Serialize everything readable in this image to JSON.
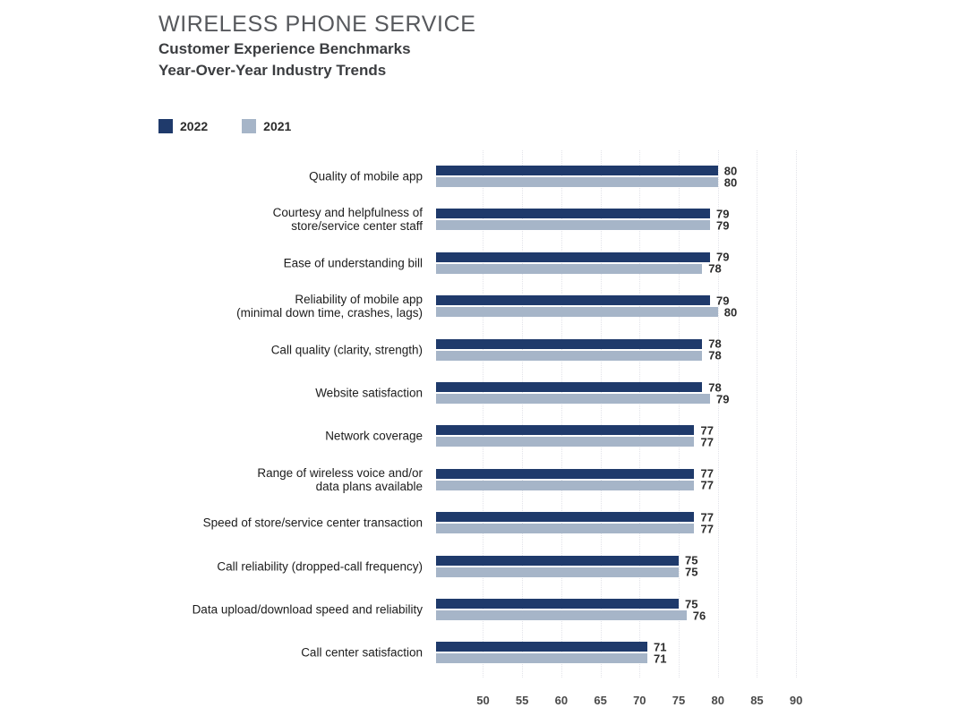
{
  "header": {
    "title": "WIRELESS PHONE SERVICE",
    "subtitle_line1": "Customer Experience Benchmarks",
    "subtitle_line2": "Year-Over-Year Industry Trends"
  },
  "legend": {
    "items": [
      {
        "label": "2022",
        "color": "#1f3a6b"
      },
      {
        "label": "2021",
        "color": "#a6b5c8"
      }
    ]
  },
  "chart_data": {
    "type": "bar",
    "orientation": "horizontal",
    "title": "WIRELESS PHONE SERVICE",
    "subtitle": "Customer Experience Benchmarks — Year-Over-Year Industry Trends",
    "categories": [
      [
        "Quality of mobile app"
      ],
      [
        "Courtesy and helpfulness of",
        "store/service center staff"
      ],
      [
        "Ease of understanding bill"
      ],
      [
        "Reliability of mobile app",
        "(minimal down time, crashes, lags)"
      ],
      [
        "Call quality (clarity, strength)"
      ],
      [
        "Website satisfaction"
      ],
      [
        "Network coverage"
      ],
      [
        "Range of wireless voice and/or",
        "data plans available"
      ],
      [
        "Speed of store/service center transaction"
      ],
      [
        "Call reliability (dropped-call frequency)"
      ],
      [
        "Data upload/download speed and reliability"
      ],
      [
        "Call center satisfaction"
      ]
    ],
    "series": [
      {
        "name": "2022",
        "color": "#1f3a6b",
        "values": [
          80,
          79,
          79,
          79,
          78,
          78,
          77,
          77,
          77,
          75,
          75,
          71
        ]
      },
      {
        "name": "2021",
        "color": "#a6b5c8",
        "values": [
          80,
          79,
          78,
          80,
          78,
          79,
          77,
          77,
          77,
          75,
          76,
          71
        ]
      }
    ],
    "xticks": [
      50,
      55,
      60,
      65,
      70,
      75,
      80,
      85,
      90
    ],
    "xlim": [
      44,
      92.5
    ],
    "value_labels": true,
    "grid": {
      "style": "dotted-vertical",
      "color": "#e2e3e9"
    },
    "legend_position": "top-left"
  }
}
